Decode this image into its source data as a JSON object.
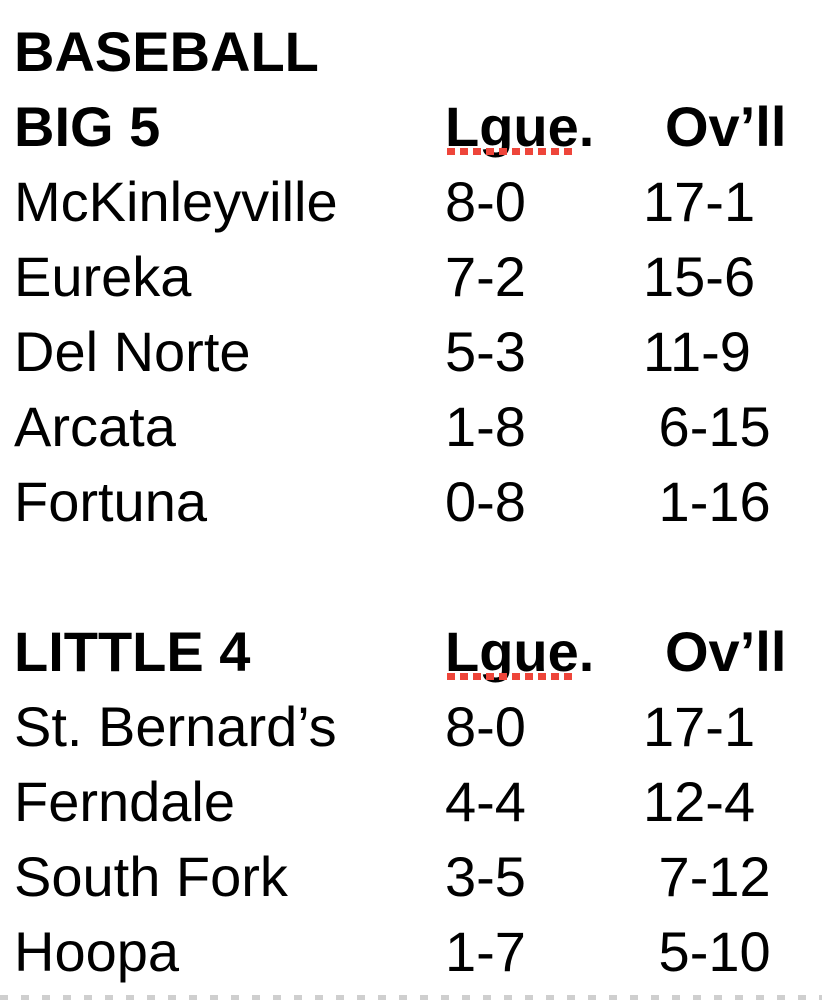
{
  "page": {
    "title": "BASEBALL",
    "squiggle_color": "#ee453a",
    "text_color": "#000000",
    "sections": [
      {
        "name": "BIG 5",
        "league_header": "Lgue.",
        "overall_header": "Ov’ll",
        "rows": [
          {
            "team": "McKinleyville",
            "league": "8-0",
            "overall": "17-1"
          },
          {
            "team": "Eureka",
            "league": "7-2",
            "overall": "15-6"
          },
          {
            "team": "Del Norte",
            "league": "5-3",
            "overall": "11-9"
          },
          {
            "team": "Arcata",
            "league": "1-8",
            "overall": " 6-15"
          },
          {
            "team": "Fortuna",
            "league": "0-8",
            "overall": " 1-16"
          }
        ]
      },
      {
        "name": "LITTLE 4",
        "league_header": "Lgue.",
        "overall_header": "Ov’ll",
        "rows": [
          {
            "team": "St. Bernard’s",
            "league": "8-0",
            "overall": "17-1"
          },
          {
            "team": "Ferndale",
            "league": "4-4",
            "overall": "12-4"
          },
          {
            "team": "South Fork",
            "league": "3-5",
            "overall": " 7-12"
          },
          {
            "team": "Hoopa",
            "league": "1-7",
            "overall": " 5-10"
          }
        ]
      }
    ]
  }
}
